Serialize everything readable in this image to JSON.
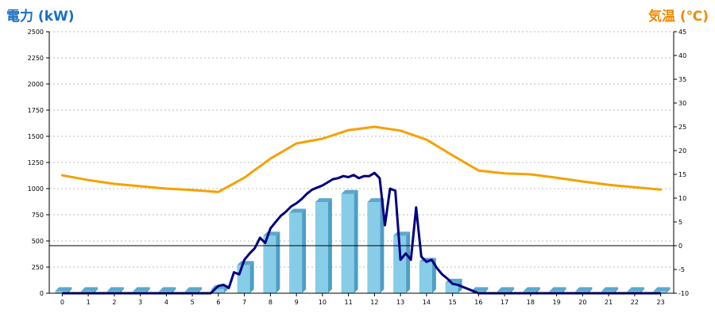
{
  "chart_data": {
    "type": "bar+line",
    "title": "",
    "left_axis": {
      "label": "電力 (kW)",
      "range": [
        0,
        2500
      ],
      "ticks": [
        0,
        250,
        500,
        750,
        1000,
        1250,
        1500,
        1750,
        2000,
        2250,
        2500
      ]
    },
    "right_axis": {
      "label": "気温 (℃)",
      "range": [
        -10,
        45
      ],
      "ticks": [
        -10,
        -5,
        0,
        5,
        10,
        15,
        20,
        25,
        30,
        35,
        40,
        45
      ]
    },
    "categories": [
      "0",
      "1",
      "2",
      "3",
      "4",
      "5",
      "6",
      "7",
      "8",
      "9",
      "10",
      "11",
      "12",
      "13",
      "14",
      "15",
      "16",
      "17",
      "18",
      "19",
      "20",
      "21",
      "22",
      "23"
    ],
    "grid": true,
    "zero_reference_line": 0,
    "series": [
      {
        "name": "",
        "type": "bar",
        "axis": "left",
        "values": [
          20,
          20,
          20,
          20,
          20,
          20,
          40,
          270,
          550,
          770,
          870,
          950,
          870,
          550,
          300,
          100,
          20,
          20,
          20,
          20,
          20,
          20,
          20,
          20
        ]
      },
      {
        "name": "",
        "type": "line",
        "axis": "right",
        "x": [
          0,
          1,
          2,
          3,
          4,
          5,
          6,
          7,
          8,
          9,
          10,
          11,
          12,
          13,
          14,
          15,
          16,
          17,
          18,
          19,
          20,
          21,
          22,
          23
        ],
        "values": [
          14.8,
          13.8,
          13.0,
          12.5,
          12.0,
          11.7,
          11.3,
          14.3,
          18.3,
          21.5,
          22.5,
          24.3,
          25.0,
          24.2,
          22.3,
          19.0,
          15.8,
          15.2,
          15.0,
          14.3,
          13.5,
          12.8,
          12.3,
          11.8
        ]
      },
      {
        "name": "",
        "type": "line",
        "axis": "left",
        "x": [
          0,
          1,
          2,
          3,
          4,
          5,
          5.7,
          6.0,
          6.2,
          6.4,
          6.6,
          6.8,
          7.0,
          7.2,
          7.4,
          7.6,
          7.8,
          8.0,
          8.2,
          8.4,
          8.6,
          8.8,
          9.0,
          9.2,
          9.4,
          9.6,
          9.8,
          10.0,
          10.2,
          10.4,
          10.6,
          10.8,
          11.0,
          11.2,
          11.4,
          11.6,
          11.8,
          12.0,
          12.2,
          12.4,
          12.6,
          12.8,
          13.0,
          13.2,
          13.4,
          13.6,
          13.8,
          14.0,
          14.2,
          14.4,
          14.6,
          14.8,
          15.0,
          15.2,
          15.4,
          15.6,
          16.0,
          23
        ],
        "values": [
          0,
          0,
          0,
          0,
          0,
          0,
          0,
          70,
          80,
          50,
          200,
          180,
          320,
          380,
          430,
          530,
          480,
          620,
          680,
          740,
          780,
          830,
          860,
          900,
          950,
          990,
          1010,
          1030,
          1060,
          1090,
          1100,
          1120,
          1110,
          1130,
          1100,
          1120,
          1120,
          1150,
          1100,
          650,
          1000,
          980,
          320,
          380,
          320,
          820,
          350,
          300,
          320,
          240,
          180,
          140,
          90,
          80,
          60,
          40,
          0,
          0
        ]
      }
    ],
    "colors": {
      "bar": "#87cde8",
      "temperature": "#f5a100",
      "power_line": "#000080",
      "left_title": "#1a6fc4",
      "right_title": "#f08a00"
    }
  }
}
